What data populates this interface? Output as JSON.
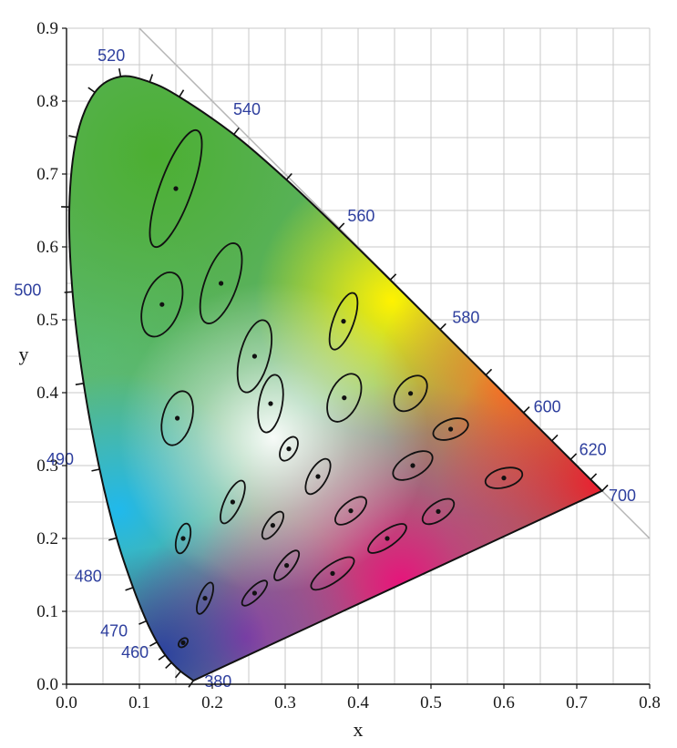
{
  "chart_data": {
    "type": "scatter",
    "xlabel": "x",
    "ylabel": "y",
    "xlim": [
      0.0,
      0.8
    ],
    "ylim": [
      0.0,
      0.9
    ],
    "grid": true,
    "x_ticks": [
      "0.0",
      "0.1",
      "0.2",
      "0.3",
      "0.4",
      "0.5",
      "0.6",
      "0.7",
      "0.8"
    ],
    "y_ticks": [
      "0.0",
      "0.1",
      "0.2",
      "0.3",
      "0.4",
      "0.5",
      "0.6",
      "0.7",
      "0.8",
      "0.9"
    ],
    "spectral_locus": [
      {
        "wl": 380,
        "x": 0.1741,
        "y": 0.005
      },
      {
        "wl": 450,
        "x": 0.1566,
        "y": 0.0177
      },
      {
        "wl": 460,
        "x": 0.144,
        "y": 0.0297
      },
      {
        "wl": 465,
        "x": 0.1355,
        "y": 0.0399
      },
      {
        "wl": 470,
        "x": 0.1241,
        "y": 0.0578
      },
      {
        "wl": 475,
        "x": 0.1096,
        "y": 0.0868
      },
      {
        "wl": 480,
        "x": 0.0913,
        "y": 0.1327
      },
      {
        "wl": 485,
        "x": 0.0687,
        "y": 0.2007
      },
      {
        "wl": 490,
        "x": 0.0454,
        "y": 0.295
      },
      {
        "wl": 495,
        "x": 0.0235,
        "y": 0.4127
      },
      {
        "wl": 500,
        "x": 0.0082,
        "y": 0.5384
      },
      {
        "wl": 505,
        "x": 0.0039,
        "y": 0.6548
      },
      {
        "wl": 510,
        "x": 0.0139,
        "y": 0.7502
      },
      {
        "wl": 515,
        "x": 0.0389,
        "y": 0.812
      },
      {
        "wl": 520,
        "x": 0.0743,
        "y": 0.8338
      },
      {
        "wl": 525,
        "x": 0.1142,
        "y": 0.8262
      },
      {
        "wl": 530,
        "x": 0.1547,
        "y": 0.8059
      },
      {
        "wl": 540,
        "x": 0.2296,
        "y": 0.7543
      },
      {
        "wl": 550,
        "x": 0.3016,
        "y": 0.6923
      },
      {
        "wl": 560,
        "x": 0.3731,
        "y": 0.6245
      },
      {
        "wl": 570,
        "x": 0.4441,
        "y": 0.5547
      },
      {
        "wl": 580,
        "x": 0.5125,
        "y": 0.4866
      },
      {
        "wl": 590,
        "x": 0.5752,
        "y": 0.4242
      },
      {
        "wl": 600,
        "x": 0.627,
        "y": 0.3725
      },
      {
        "wl": 610,
        "x": 0.6658,
        "y": 0.334
      },
      {
        "wl": 620,
        "x": 0.6915,
        "y": 0.3083
      },
      {
        "wl": 640,
        "x": 0.719,
        "y": 0.2809
      },
      {
        "wl": 700,
        "x": 0.7347,
        "y": 0.2653
      }
    ],
    "wavelength_labels": [
      {
        "text": "380",
        "x": 0.174,
        "y": 0.005
      },
      {
        "text": "460",
        "x": 0.144,
        "y": 0.03
      },
      {
        "text": "470",
        "x": 0.124,
        "y": 0.058
      },
      {
        "text": "480",
        "x": 0.091,
        "y": 0.133
      },
      {
        "text": "490",
        "x": 0.045,
        "y": 0.295
      },
      {
        "text": "500",
        "x": 0.008,
        "y": 0.538
      },
      {
        "text": "520",
        "x": 0.074,
        "y": 0.834
      },
      {
        "text": "540",
        "x": 0.23,
        "y": 0.754
      },
      {
        "text": "560",
        "x": 0.373,
        "y": 0.625
      },
      {
        "text": "580",
        "x": 0.513,
        "y": 0.487
      },
      {
        "text": "600",
        "x": 0.627,
        "y": 0.373
      },
      {
        "text": "620",
        "x": 0.692,
        "y": 0.308
      },
      {
        "text": "700",
        "x": 0.735,
        "y": 0.265
      }
    ],
    "ellipses": [
      {
        "x": 0.15,
        "y": 0.68,
        "a": 0.085,
        "b": 0.022,
        "angle": 70
      },
      {
        "x": 0.131,
        "y": 0.521,
        "a": 0.046,
        "b": 0.025,
        "angle": 70
      },
      {
        "x": 0.212,
        "y": 0.55,
        "a": 0.058,
        "b": 0.022,
        "angle": 70
      },
      {
        "x": 0.258,
        "y": 0.45,
        "a": 0.051,
        "b": 0.02,
        "angle": 75
      },
      {
        "x": 0.152,
        "y": 0.365,
        "a": 0.038,
        "b": 0.02,
        "angle": 75
      },
      {
        "x": 0.28,
        "y": 0.385,
        "a": 0.04,
        "b": 0.016,
        "angle": 80
      },
      {
        "x": 0.38,
        "y": 0.498,
        "a": 0.041,
        "b": 0.014,
        "angle": 70
      },
      {
        "x": 0.381,
        "y": 0.393,
        "a": 0.035,
        "b": 0.02,
        "angle": 65
      },
      {
        "x": 0.305,
        "y": 0.323,
        "a": 0.018,
        "b": 0.01,
        "angle": 60
      },
      {
        "x": 0.472,
        "y": 0.399,
        "a": 0.028,
        "b": 0.018,
        "angle": 50
      },
      {
        "x": 0.527,
        "y": 0.35,
        "a": 0.025,
        "b": 0.013,
        "angle": 20
      },
      {
        "x": 0.475,
        "y": 0.3,
        "a": 0.03,
        "b": 0.015,
        "angle": 30
      },
      {
        "x": 0.6,
        "y": 0.283,
        "a": 0.026,
        "b": 0.013,
        "angle": 15
      },
      {
        "x": 0.228,
        "y": 0.25,
        "a": 0.032,
        "b": 0.011,
        "angle": 65
      },
      {
        "x": 0.345,
        "y": 0.285,
        "a": 0.027,
        "b": 0.012,
        "angle": 60
      },
      {
        "x": 0.16,
        "y": 0.2,
        "a": 0.021,
        "b": 0.009,
        "angle": 75
      },
      {
        "x": 0.283,
        "y": 0.218,
        "a": 0.022,
        "b": 0.009,
        "angle": 55
      },
      {
        "x": 0.39,
        "y": 0.238,
        "a": 0.026,
        "b": 0.012,
        "angle": 40
      },
      {
        "x": 0.51,
        "y": 0.237,
        "a": 0.025,
        "b": 0.012,
        "angle": 35
      },
      {
        "x": 0.302,
        "y": 0.163,
        "a": 0.025,
        "b": 0.009,
        "angle": 52
      },
      {
        "x": 0.44,
        "y": 0.2,
        "a": 0.031,
        "b": 0.011,
        "angle": 35
      },
      {
        "x": 0.19,
        "y": 0.118,
        "a": 0.023,
        "b": 0.008,
        "angle": 68
      },
      {
        "x": 0.258,
        "y": 0.125,
        "a": 0.023,
        "b": 0.008,
        "angle": 45
      },
      {
        "x": 0.365,
        "y": 0.152,
        "a": 0.035,
        "b": 0.012,
        "angle": 35
      },
      {
        "x": 0.16,
        "y": 0.057,
        "a": 0.0075,
        "b": 0.005,
        "angle": 45
      }
    ]
  }
}
